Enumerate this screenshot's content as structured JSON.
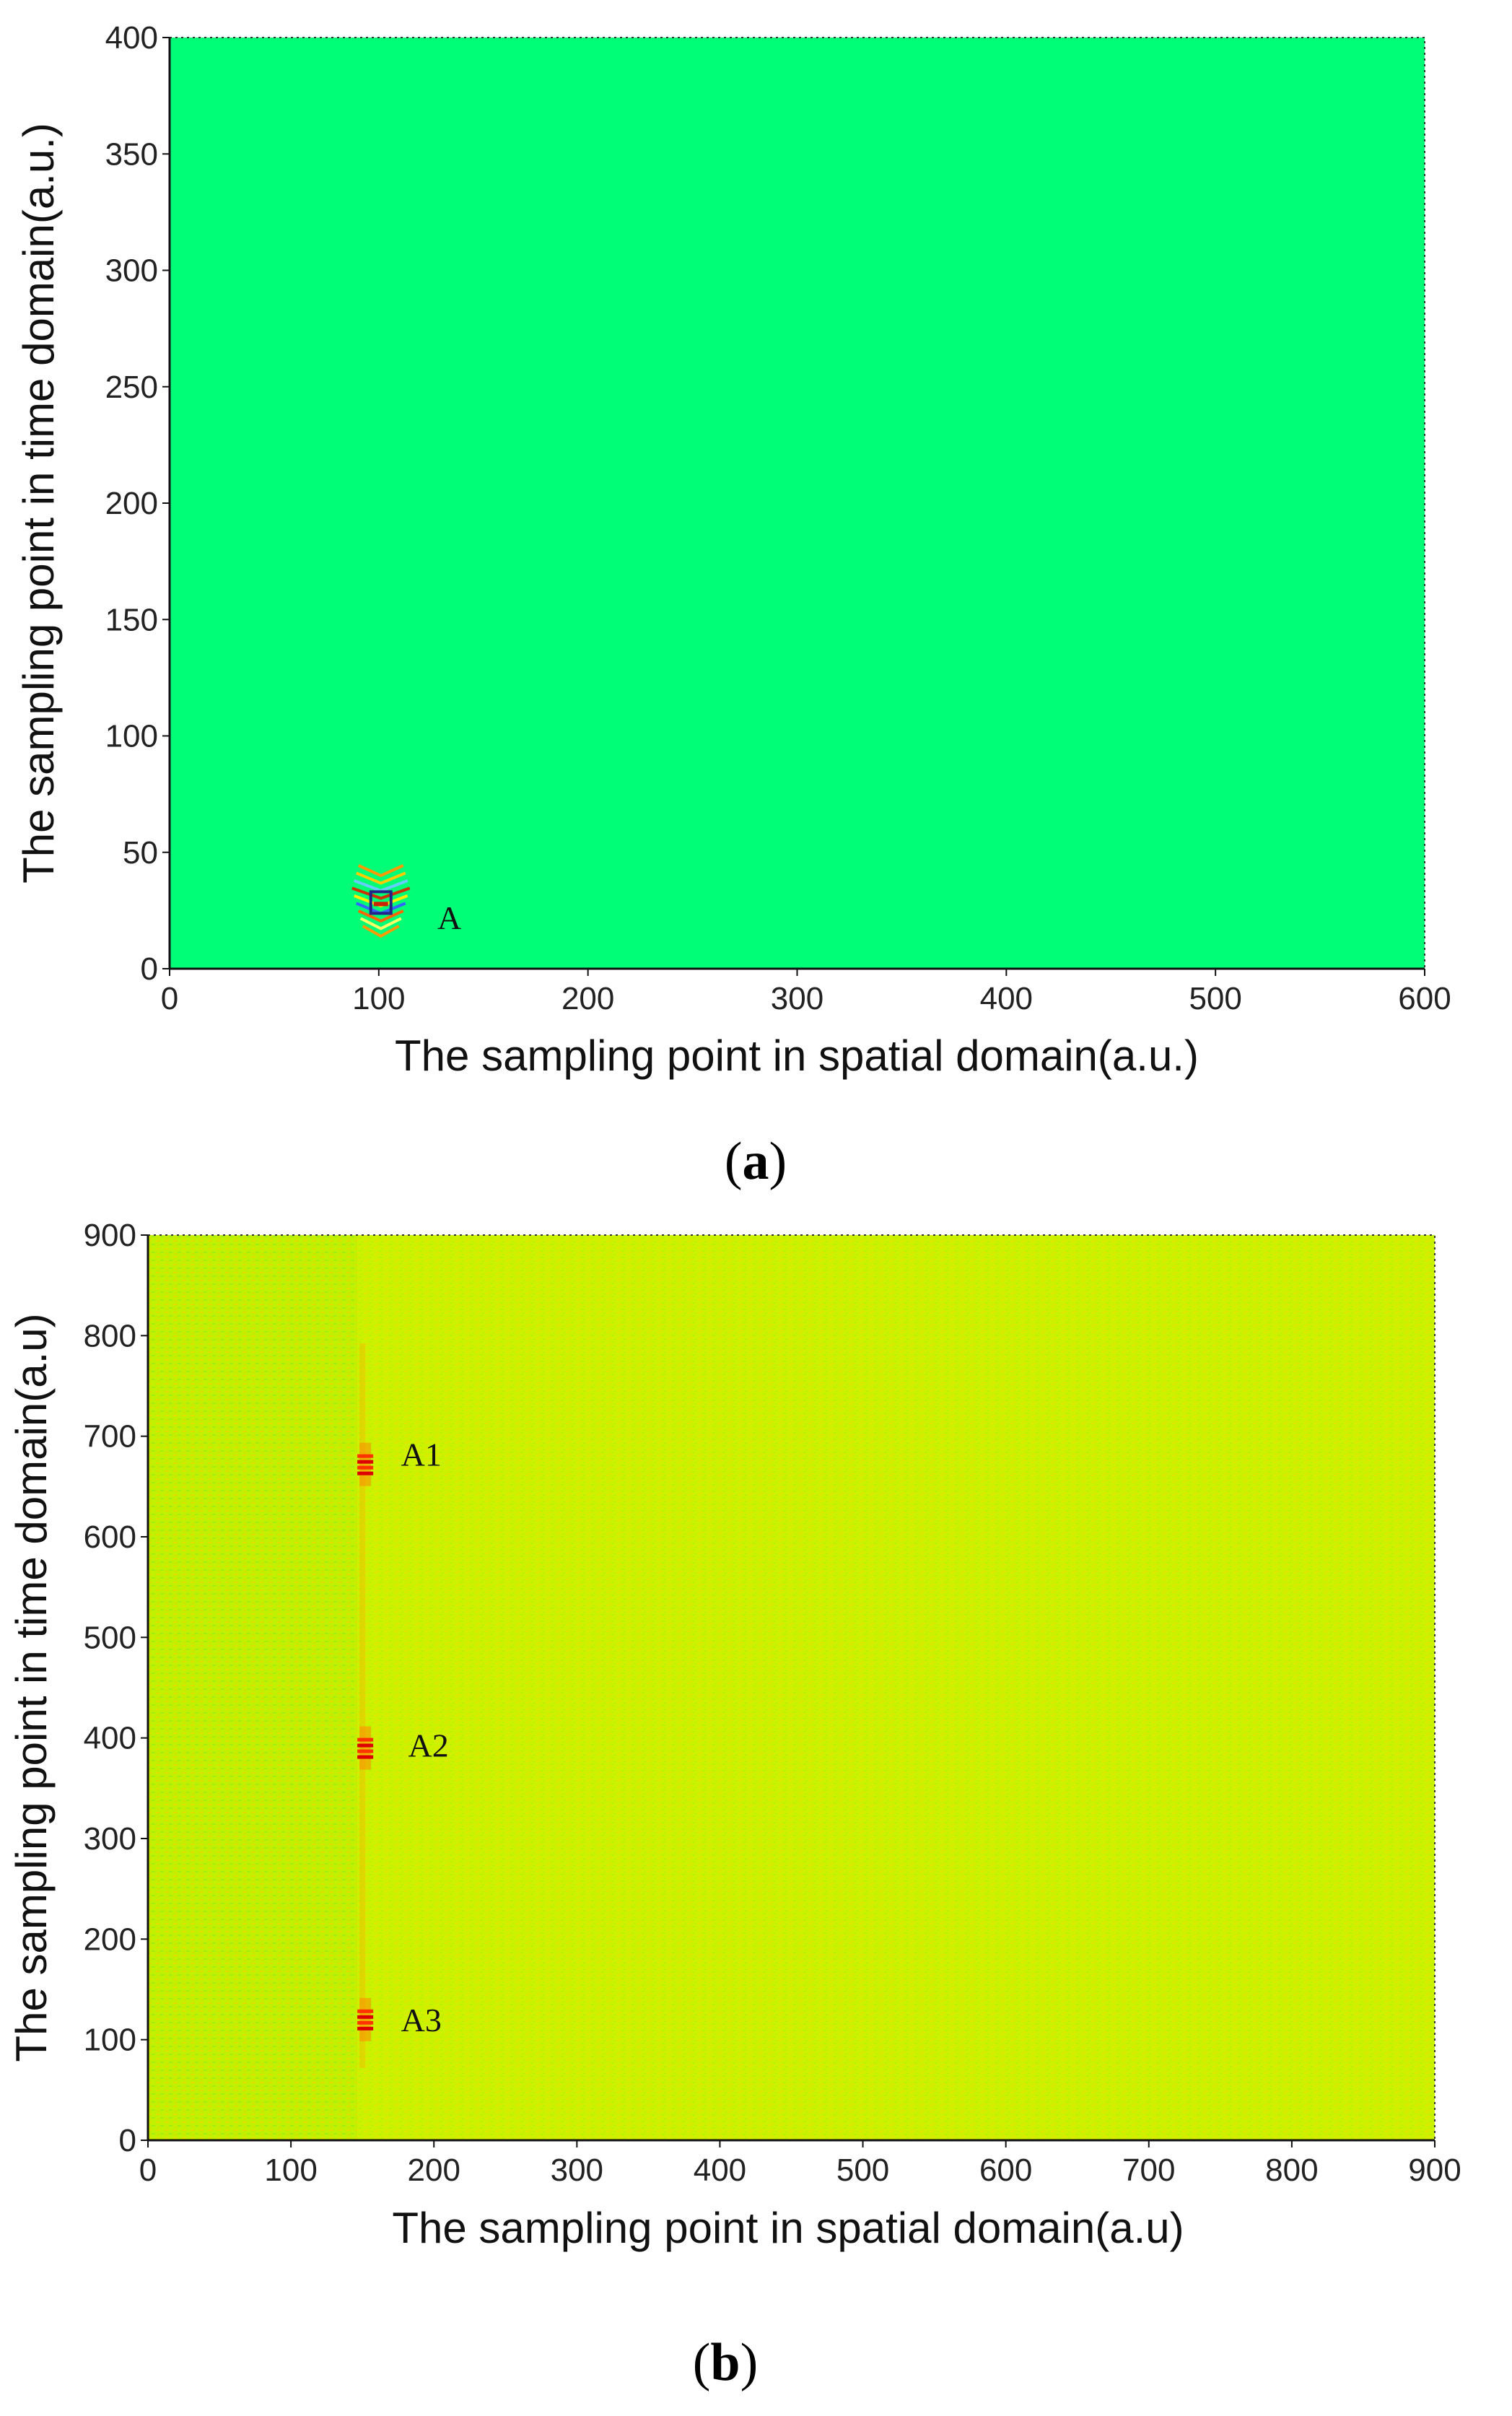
{
  "chart_data": [
    {
      "type": "heatmap",
      "panel_label": "a",
      "xlabel": "The sampling point in spatial domain(a.u.)",
      "ylabel": "The sampling point in time domain(a.u.)",
      "xlim": [
        0,
        600
      ],
      "ylim": [
        0,
        400
      ],
      "xticks": [
        0,
        100,
        200,
        300,
        400,
        500,
        600
      ],
      "yticks": [
        0,
        50,
        100,
        150,
        200,
        250,
        300,
        350,
        400
      ],
      "background_color": "#00ff77",
      "grid": false,
      "annotations": [
        {
          "text": "A",
          "x": 128,
          "y": 22
        }
      ],
      "features": [
        {
          "name": "A",
          "x": 101,
          "y": 25,
          "y_span": [
            14,
            40
          ]
        }
      ]
    },
    {
      "type": "heatmap",
      "panel_label": "b",
      "xlabel": "The sampling point in spatial domain(a.u)",
      "ylabel": "The sampling point in time domain(a.u)",
      "xlim": [
        0,
        900
      ],
      "ylim": [
        0,
        900
      ],
      "xticks": [
        0,
        100,
        200,
        300,
        400,
        500,
        600,
        700,
        800,
        900
      ],
      "yticks": [
        0,
        100,
        200,
        300,
        400,
        500,
        600,
        700,
        800,
        900
      ],
      "background_color": "#ccf200",
      "grid": false,
      "annotations": [
        {
          "text": "A1",
          "x": 177,
          "y": 682
        },
        {
          "text": "A2",
          "x": 182,
          "y": 393
        },
        {
          "text": "A3",
          "x": 177,
          "y": 120
        }
      ],
      "features": [
        {
          "name": "A1",
          "x": 152,
          "y": 672
        },
        {
          "name": "A2",
          "x": 152,
          "y": 390
        },
        {
          "name": "A3",
          "x": 152,
          "y": 120
        }
      ]
    }
  ]
}
